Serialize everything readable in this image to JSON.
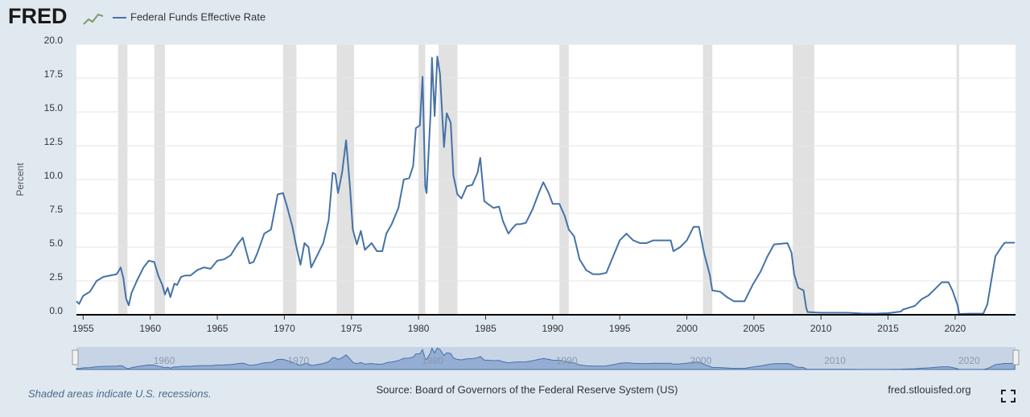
{
  "logo": "FRED",
  "footer": {
    "note": "Shaded areas indicate U.S. recessions.",
    "source": "Source: Board of Governors of the Federal Reserve System (US)",
    "site": "fred.stlouisfed.org"
  },
  "chart_data": {
    "type": "line",
    "y_label": "Percent",
    "grid": true,
    "series": [
      {
        "name": "Federal Funds Effective Rate",
        "color": "#4572a7",
        "x": [
          1954.5,
          1954.7,
          1955.0,
          1955.5,
          1956.0,
          1956.5,
          1957.0,
          1957.5,
          1957.8,
          1958.0,
          1958.2,
          1958.4,
          1958.6,
          1959.0,
          1959.5,
          1959.9,
          1960.3,
          1960.6,
          1960.9,
          1961.1,
          1961.3,
          1961.5,
          1961.8,
          1962.0,
          1962.3,
          1962.6,
          1963.0,
          1963.5,
          1964.0,
          1964.5,
          1965.0,
          1965.5,
          1966.0,
          1966.5,
          1966.9,
          1967.1,
          1967.4,
          1967.7,
          1968.0,
          1968.5,
          1969.0,
          1969.5,
          1969.9,
          1970.2,
          1970.6,
          1970.9,
          1971.2,
          1971.5,
          1971.8,
          1972.0,
          1972.5,
          1972.9,
          1973.3,
          1973.6,
          1973.8,
          1974.0,
          1974.3,
          1974.6,
          1974.9,
          1975.1,
          1975.4,
          1975.7,
          1976.0,
          1976.5,
          1976.9,
          1977.3,
          1977.6,
          1978.0,
          1978.5,
          1978.9,
          1979.3,
          1979.6,
          1979.8,
          1980.1,
          1980.3,
          1980.5,
          1980.6,
          1980.9,
          1981.0,
          1981.2,
          1981.4,
          1981.6,
          1981.9,
          1982.1,
          1982.4,
          1982.6,
          1982.9,
          1983.2,
          1983.6,
          1984.0,
          1984.4,
          1984.6,
          1984.9,
          1985.3,
          1985.6,
          1986.0,
          1986.3,
          1986.7,
          1987.0,
          1987.3,
          1987.6,
          1988.0,
          1988.5,
          1989.0,
          1989.3,
          1989.7,
          1990.0,
          1990.5,
          1990.9,
          1991.2,
          1991.6,
          1992.0,
          1992.5,
          1993.0,
          1993.5,
          1994.0,
          1994.5,
          1995.0,
          1995.5,
          1996.0,
          1996.5,
          1997.0,
          1997.5,
          1998.0,
          1998.8,
          1999.0,
          1999.5,
          2000.0,
          2000.5,
          2000.9,
          2001.3,
          2001.7,
          2001.9,
          2002.5,
          2003.0,
          2003.5,
          2004.3,
          2004.9,
          2005.5,
          2006.0,
          2006.5,
          2007.5,
          2007.8,
          2008.0,
          2008.3,
          2008.7,
          2008.9,
          2009.0,
          2010.0,
          2011.0,
          2012.0,
          2013.0,
          2014.0,
          2015.0,
          2015.95,
          2016.1,
          2017.0,
          2017.5,
          2018.0,
          2018.5,
          2019.0,
          2019.5,
          2019.8,
          2020.2,
          2020.3,
          2021.0,
          2022.1,
          2022.4,
          2022.7,
          2023.0,
          2023.5,
          2023.7,
          2024.45
        ],
        "values": [
          1.0,
          0.8,
          1.4,
          1.7,
          2.5,
          2.8,
          2.9,
          3.0,
          3.5,
          2.7,
          1.2,
          0.7,
          1.6,
          2.5,
          3.5,
          4.0,
          3.9,
          2.9,
          2.2,
          1.5,
          2.0,
          1.3,
          2.3,
          2.2,
          2.8,
          2.9,
          2.9,
          3.3,
          3.5,
          3.4,
          4.0,
          4.1,
          4.4,
          5.2,
          5.7,
          4.9,
          3.8,
          3.9,
          4.6,
          6.0,
          6.3,
          8.9,
          9.0,
          8.0,
          6.5,
          5.0,
          3.7,
          5.3,
          5.0,
          3.5,
          4.5,
          5.3,
          7.0,
          10.5,
          10.4,
          9.0,
          10.5,
          12.9,
          9.3,
          6.3,
          5.2,
          6.2,
          4.8,
          5.3,
          4.7,
          4.7,
          6.0,
          6.7,
          7.9,
          10.0,
          10.1,
          11.0,
          13.8,
          14.0,
          17.6,
          9.5,
          9.0,
          15.0,
          19.0,
          14.7,
          19.1,
          17.8,
          12.4,
          14.9,
          14.2,
          10.3,
          8.9,
          8.6,
          9.5,
          9.6,
          10.5,
          11.6,
          8.4,
          8.1,
          7.9,
          8.0,
          6.9,
          6.0,
          6.4,
          6.7,
          6.7,
          6.8,
          7.8,
          9.1,
          9.8,
          9.0,
          8.2,
          8.2,
          7.3,
          6.3,
          5.8,
          4.1,
          3.3,
          3.0,
          3.0,
          3.1,
          4.3,
          5.5,
          6.0,
          5.5,
          5.3,
          5.3,
          5.5,
          5.5,
          5.5,
          4.7,
          5.0,
          5.5,
          6.5,
          6.5,
          4.5,
          3.0,
          1.8,
          1.7,
          1.3,
          1.0,
          1.0,
          2.2,
          3.2,
          4.3,
          5.2,
          5.3,
          4.6,
          3.0,
          2.0,
          1.8,
          0.5,
          0.2,
          0.15,
          0.15,
          0.15,
          0.1,
          0.08,
          0.12,
          0.24,
          0.38,
          0.66,
          1.15,
          1.42,
          1.91,
          2.4,
          2.4,
          1.8,
          0.65,
          0.05,
          0.08,
          0.08,
          0.77,
          2.56,
          4.33,
          5.08,
          5.33,
          5.33
        ]
      }
    ],
    "recessions": [
      [
        1957.6,
        1958.3
      ],
      [
        1960.3,
        1961.1
      ],
      [
        1969.9,
        1970.9
      ],
      [
        1973.9,
        1975.2
      ],
      [
        1980.0,
        1980.5
      ],
      [
        1981.5,
        1982.9
      ],
      [
        1990.5,
        1991.2
      ],
      [
        2001.2,
        2001.9
      ],
      [
        2007.9,
        2009.5
      ],
      [
        2020.1,
        2020.3
      ]
    ],
    "xlim": [
      1954.5,
      2024.5
    ],
    "xticks": [
      1955,
      1960,
      1965,
      1970,
      1975,
      1980,
      1985,
      1990,
      1995,
      2000,
      2005,
      2010,
      2015,
      2020
    ],
    "ylim": [
      0,
      20
    ],
    "yticks": [
      {
        "value": 0,
        "label": "0.0"
      },
      2.5,
      {
        "value": 5,
        "label": "5.0"
      },
      7.5,
      {
        "value": 10,
        "label": "10.0"
      },
      12.5,
      {
        "value": 15,
        "label": "15.0"
      },
      17.5,
      {
        "value": 20,
        "label": "20.0"
      }
    ],
    "navigator_ticks": [
      1960,
      1970,
      1980,
      1990,
      2000,
      2010,
      2020
    ]
  }
}
